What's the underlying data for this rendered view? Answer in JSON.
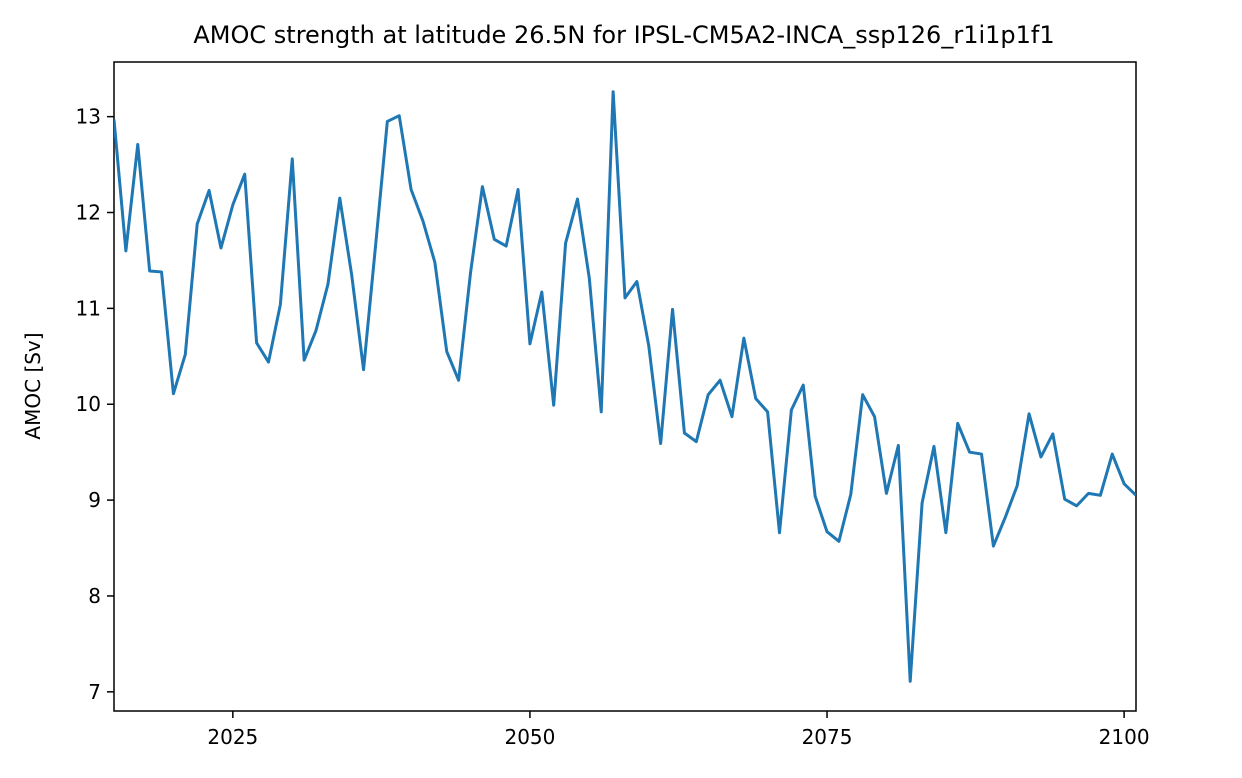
{
  "chart_data": {
    "type": "line",
    "title": "AMOC strength at latitude 26.5N for IPSL-CM5A2-INCA_ssp126_r1i1p1f1",
    "xlabel": "",
    "ylabel": "AMOC [Sv]",
    "xlim": [
      2015,
      2101
    ],
    "ylim": [
      6.8,
      13.57
    ],
    "xticks": [
      2025,
      2050,
      2075,
      2100
    ],
    "yticks": [
      7,
      8,
      9,
      10,
      11,
      12,
      13
    ],
    "grid": false,
    "colors": {
      "line": "#1f77b4",
      "axes": "#000000",
      "background": "#ffffff"
    },
    "series": [
      {
        "x": [
          2015,
          2016,
          2017,
          2018,
          2019,
          2020,
          2021,
          2022,
          2023,
          2024,
          2025,
          2026,
          2027,
          2028,
          2029,
          2030,
          2031,
          2032,
          2033,
          2034,
          2035,
          2036,
          2037,
          2038,
          2039,
          2040,
          2041,
          2042,
          2043,
          2044,
          2045,
          2046,
          2047,
          2048,
          2049,
          2050,
          2051,
          2052,
          2053,
          2054,
          2055,
          2056,
          2057,
          2058,
          2059,
          2060,
          2061,
          2062,
          2063,
          2064,
          2065,
          2066,
          2067,
          2068,
          2069,
          2070,
          2071,
          2072,
          2073,
          2074,
          2075,
          2076,
          2077,
          2078,
          2079,
          2080,
          2081,
          2082,
          2083,
          2084,
          2085,
          2086,
          2087,
          2088,
          2089,
          2090,
          2091,
          2092,
          2093,
          2094,
          2095,
          2096,
          2097,
          2098,
          2099,
          2100,
          2101
        ],
        "values": [
          12.97,
          11.6,
          12.71,
          11.39,
          11.38,
          10.11,
          10.52,
          11.88,
          12.23,
          11.63,
          12.08,
          12.4,
          10.64,
          10.44,
          11.04,
          12.56,
          10.46,
          10.77,
          11.25,
          12.15,
          11.35,
          10.36,
          11.64,
          12.95,
          13.01,
          12.24,
          11.91,
          11.48,
          10.55,
          10.25,
          11.37,
          12.27,
          11.72,
          11.65,
          12.24,
          10.63,
          11.17,
          9.99,
          11.68,
          12.14,
          11.31,
          9.92,
          13.26,
          11.11,
          11.28,
          10.61,
          9.59,
          10.99,
          9.7,
          9.61,
          10.1,
          10.25,
          9.87,
          10.69,
          10.06,
          9.92,
          8.66,
          9.94,
          10.2,
          9.04,
          8.67,
          8.57,
          9.06,
          10.1,
          9.87,
          9.07,
          9.57,
          7.11,
          8.97,
          9.56,
          8.66,
          9.8,
          9.5,
          9.48,
          8.52,
          8.82,
          9.15,
          9.9,
          9.45,
          9.69,
          9.01,
          8.94,
          9.07,
          9.05,
          9.48,
          9.17,
          9.05
        ]
      }
    ]
  }
}
